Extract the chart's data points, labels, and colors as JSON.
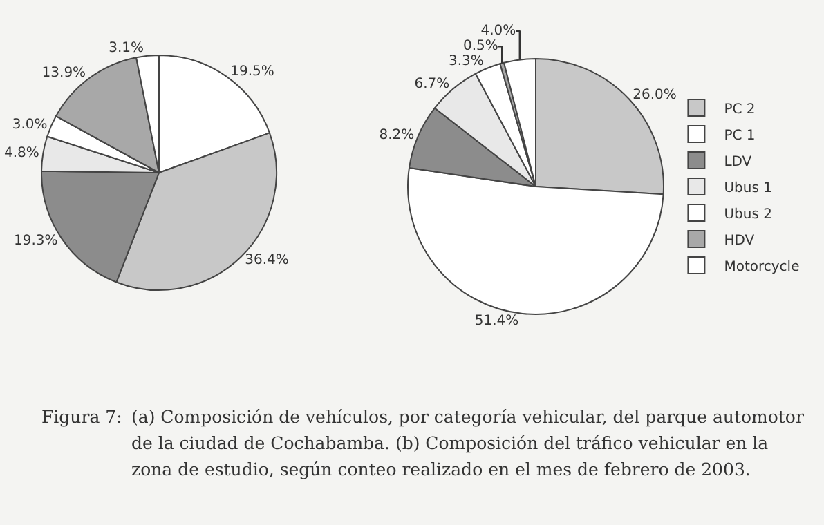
{
  "chart_data": [
    {
      "type": "pie",
      "categories": [
        null,
        null,
        null,
        null,
        null,
        null,
        null
      ],
      "values": [
        19.5,
        36.4,
        19.3,
        4.8,
        3.0,
        13.9,
        3.1
      ],
      "colors": [
        "#ffffff",
        "#c8c8c8",
        "#8c8c8c",
        "#e8e8e8",
        "#ffffff",
        "#a8a8a8",
        "#ffffff"
      ],
      "value_labels": [
        "19.5%",
        "36.4%",
        "19.3%",
        "4.8%",
        "3.0%",
        "13.9%",
        "3.1%"
      ],
      "legend": false,
      "annotations": [
        "Figura 7:",
        "(a) Composición de vehículos, por categoría vehicular, del parque automotor de la ciudad de Cochabamba. (b) Composición del tráfico vehicular en la zona de estudio, según conteo realizado en el mes de febrero de 2003."
      ]
    },
    {
      "type": "pie",
      "categories": [
        "PC 2",
        "PC 1",
        "LDV",
        "Ubus 1",
        "Ubus 2",
        "HDV",
        "Motorcycle"
      ],
      "values": [
        26.0,
        51.4,
        8.2,
        6.7,
        3.3,
        0.5,
        4.0
      ],
      "colors": [
        "#c8c8c8",
        "#ffffff",
        "#8c8c8c",
        "#e8e8e8",
        "#ffffff",
        "#a8a8a8",
        "#ffffff"
      ],
      "value_labels": [
        "26.0%",
        "51.4%",
        "8.2%",
        "6.7%",
        "3.3%",
        "0.5%",
        "4.0%"
      ],
      "legend": "right"
    }
  ]
}
